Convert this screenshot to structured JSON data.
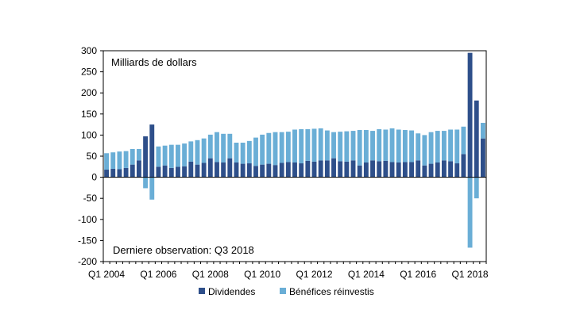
{
  "chart_data": {
    "type": "bar",
    "stacked": true,
    "unit_label": "Milliards de dollars",
    "note": "Derniere observation: Q3 2018",
    "ylim": [
      -200,
      300
    ],
    "yticks": [
      -200,
      -150,
      -100,
      -50,
      0,
      50,
      100,
      150,
      200,
      250,
      300
    ],
    "grid": false,
    "legend_position": "bottom",
    "categories": [
      "Q1 2004",
      "Q2 2004",
      "Q3 2004",
      "Q4 2004",
      "Q1 2005",
      "Q2 2005",
      "Q3 2005",
      "Q4 2005",
      "Q1 2006",
      "Q2 2006",
      "Q3 2006",
      "Q4 2006",
      "Q1 2007",
      "Q2 2007",
      "Q3 2007",
      "Q4 2007",
      "Q1 2008",
      "Q2 2008",
      "Q3 2008",
      "Q4 2008",
      "Q1 2009",
      "Q2 2009",
      "Q3 2009",
      "Q4 2009",
      "Q1 2010",
      "Q2 2010",
      "Q3 2010",
      "Q4 2010",
      "Q1 2011",
      "Q2 2011",
      "Q3 2011",
      "Q4 2011",
      "Q1 2012",
      "Q2 2012",
      "Q3 2012",
      "Q4 2012",
      "Q1 2013",
      "Q2 2013",
      "Q3 2013",
      "Q4 2013",
      "Q1 2014",
      "Q2 2014",
      "Q3 2014",
      "Q4 2014",
      "Q1 2015",
      "Q2 2015",
      "Q3 2015",
      "Q4 2015",
      "Q1 2016",
      "Q2 2016",
      "Q3 2016",
      "Q4 2016",
      "Q1 2017",
      "Q2 2017",
      "Q3 2017",
      "Q4 2017",
      "Q1 2018",
      "Q2 2018",
      "Q3 2018"
    ],
    "xtick_labels": [
      "Q1 2004",
      "Q1 2006",
      "Q1 2008",
      "Q1 2010",
      "Q1 2012",
      "Q1 2014",
      "Q1 2016",
      "Q1 2018"
    ],
    "series": [
      {
        "name": "Dividendes",
        "color": "#2e4f8a",
        "values": [
          18,
          20,
          19,
          22,
          30,
          40,
          97,
          125,
          25,
          28,
          22,
          25,
          26,
          37,
          30,
          34,
          45,
          36,
          35,
          45,
          35,
          32,
          33,
          27,
          30,
          32,
          29,
          34,
          36,
          35,
          33,
          39,
          37,
          40,
          40,
          45,
          38,
          37,
          40,
          28,
          35,
          40,
          38,
          39,
          36,
          35,
          36,
          36,
          40,
          28,
          32,
          35,
          40,
          38,
          33,
          55,
          295,
          182,
          92
        ],
        "top_values": [
          18,
          20,
          19,
          22,
          30,
          40,
          97,
          125,
          25,
          28,
          22,
          25,
          26,
          37,
          30,
          34,
          45,
          36,
          35,
          45,
          35,
          32,
          33,
          27,
          30,
          32,
          29,
          34,
          36,
          35,
          33,
          39,
          37,
          40,
          40,
          45,
          38,
          37,
          40,
          28,
          35,
          40,
          38,
          39,
          36,
          35,
          36,
          36,
          40,
          28,
          32,
          35,
          40,
          38,
          33,
          55,
          295,
          182,
          92
        ]
      },
      {
        "name": "Bénéfices réinvestis",
        "color": "#6aaed6",
        "values": [
          39,
          39,
          42,
          40,
          37,
          27,
          -26,
          -53,
          48,
          47,
          55,
          52,
          54,
          48,
          58,
          58,
          56,
          71,
          68,
          58,
          47,
          50,
          53,
          67,
          71,
          73,
          78,
          73,
          72,
          78,
          81,
          75,
          78,
          76,
          71,
          62,
          70,
          72,
          70,
          84,
          77,
          70,
          76,
          74,
          80,
          78,
          76,
          75,
          64,
          72,
          75,
          75,
          70,
          75,
          80,
          65,
          -167,
          -50,
          37
        ],
        "top_values": [
          57,
          59,
          61,
          62,
          67,
          67,
          -26,
          -53,
          73,
          75,
          77,
          77,
          80,
          85,
          88,
          92,
          101,
          107,
          103,
          103,
          82,
          82,
          86,
          94,
          101,
          105,
          107,
          107,
          108,
          113,
          114,
          114,
          115,
          116,
          111,
          107,
          108,
          109,
          110,
          112,
          112,
          110,
          114,
          113,
          116,
          113,
          112,
          111,
          104,
          100,
          107,
          110,
          110,
          113,
          113,
          120,
          -167,
          -50,
          129
        ]
      }
    ]
  }
}
